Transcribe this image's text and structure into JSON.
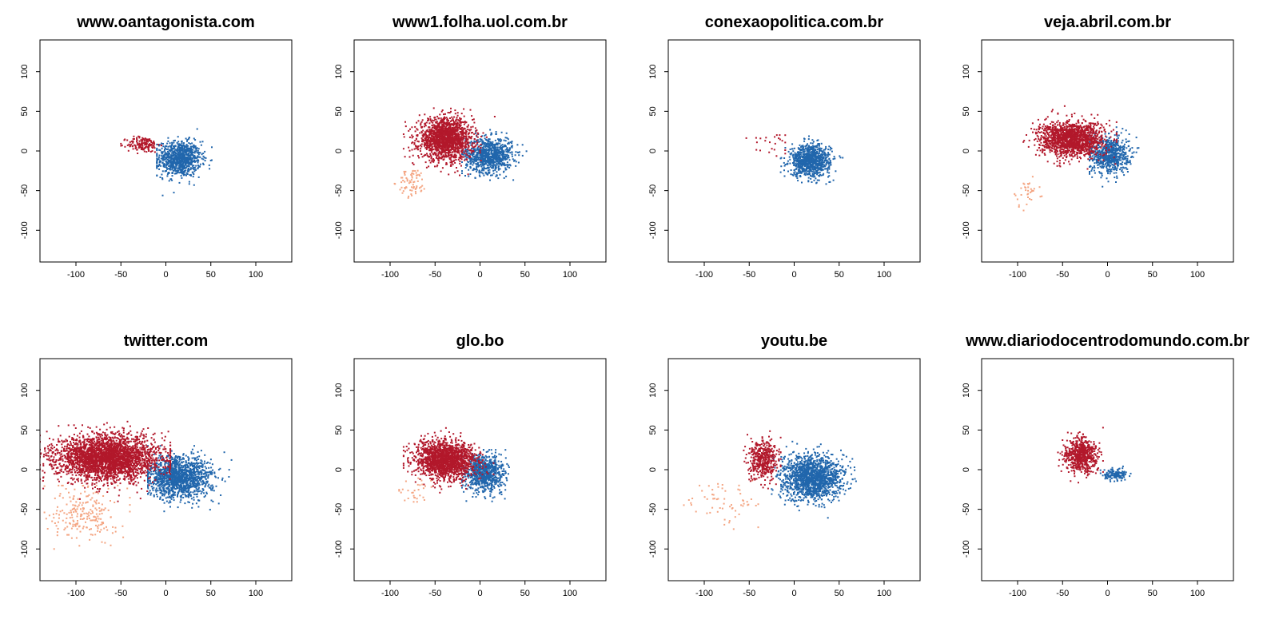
{
  "colors": {
    "red_cluster": "#b2182b",
    "blue_cluster": "#2166ac",
    "light_cluster": "#f4a582",
    "background": "#ffffff",
    "axis": "#000000"
  },
  "chart_data": [
    {
      "type": "scatter",
      "title": "www.oantagonista.com",
      "xlim": [
        -140,
        140
      ],
      "ylim": [
        -140,
        140
      ],
      "xticks": [
        "-100",
        "-50",
        "0",
        "50",
        "100"
      ],
      "yticks": [
        "-100",
        "-50",
        "0",
        "50",
        "100"
      ],
      "clusters": [
        {
          "color": "red_cluster",
          "center": [
            -25,
            8
          ],
          "spread": [
            9,
            5
          ],
          "count": 160,
          "range_x": [
            -50,
            -5
          ],
          "range_y": [
            -30,
            40
          ]
        },
        {
          "color": "blue_cluster",
          "center": [
            15,
            -10
          ],
          "spread": [
            12,
            11
          ],
          "count": 900,
          "range_x": [
            -10,
            65
          ],
          "range_y": [
            -60,
            28
          ]
        }
      ]
    },
    {
      "type": "scatter",
      "title": "www1.folha.uol.com.br",
      "xlim": [
        -140,
        140
      ],
      "ylim": [
        -140,
        140
      ],
      "xticks": [
        "-100",
        "-50",
        "0",
        "50",
        "100"
      ],
      "yticks": [
        "-100",
        "-50",
        "0",
        "50",
        "100"
      ],
      "clusters": [
        {
          "color": "red_cluster",
          "center": [
            -38,
            15
          ],
          "spread": [
            15,
            13
          ],
          "count": 1600,
          "range_x": [
            -85,
            20
          ],
          "range_y": [
            -40,
            80
          ]
        },
        {
          "color": "blue_cluster",
          "center": [
            10,
            -5
          ],
          "spread": [
            13,
            11
          ],
          "count": 900,
          "range_x": [
            -20,
            65
          ],
          "range_y": [
            -45,
            30
          ]
        },
        {
          "color": "light_cluster",
          "center": [
            -75,
            -40
          ],
          "spread": [
            8,
            9
          ],
          "count": 70,
          "range_x": [
            -95,
            -55
          ],
          "range_y": [
            -65,
            -20
          ]
        }
      ]
    },
    {
      "type": "scatter",
      "title": "conexaopolitica.com.br",
      "xlim": [
        -140,
        140
      ],
      "ylim": [
        -140,
        140
      ],
      "xticks": [
        "-100",
        "-50",
        "0",
        "50",
        "100"
      ],
      "yticks": [
        "-100",
        "-50",
        "0",
        "50",
        "100"
      ],
      "clusters": [
        {
          "color": "red_cluster",
          "center": [
            -30,
            10
          ],
          "spread": [
            14,
            10
          ],
          "count": 25,
          "range_x": [
            -80,
            -10
          ],
          "range_y": [
            -45,
            20
          ]
        },
        {
          "color": "blue_cluster",
          "center": [
            18,
            -12
          ],
          "spread": [
            11,
            10
          ],
          "count": 900,
          "range_x": [
            -15,
            75
          ],
          "range_y": [
            -60,
            35
          ]
        }
      ]
    },
    {
      "type": "scatter",
      "title": "veja.abril.com.br",
      "xlim": [
        -140,
        140
      ],
      "ylim": [
        -140,
        140
      ],
      "xticks": [
        "-100",
        "-50",
        "0",
        "50",
        "100"
      ],
      "yticks": [
        "-100",
        "-50",
        "0",
        "50",
        "100"
      ],
      "clusters": [
        {
          "color": "red_cluster",
          "center": [
            -40,
            15
          ],
          "spread": [
            18,
            11
          ],
          "count": 1500,
          "range_x": [
            -110,
            10
          ],
          "range_y": [
            -50,
            80
          ]
        },
        {
          "color": "blue_cluster",
          "center": [
            2,
            -5
          ],
          "spread": [
            11,
            12
          ],
          "count": 700,
          "range_x": [
            -20,
            65
          ],
          "range_y": [
            -45,
            30
          ]
        },
        {
          "color": "light_cluster",
          "center": [
            -90,
            -50
          ],
          "spread": [
            8,
            10
          ],
          "count": 35,
          "range_x": [
            -110,
            -70
          ],
          "range_y": [
            -75,
            -25
          ]
        }
      ]
    },
    {
      "type": "scatter",
      "title": "twitter.com",
      "xlim": [
        -140,
        140
      ],
      "ylim": [
        -140,
        140
      ],
      "xticks": [
        "-100",
        "-50",
        "0",
        "50",
        "100"
      ],
      "yticks": [
        "-100",
        "-50",
        "0",
        "50",
        "100"
      ],
      "clusters": [
        {
          "color": "red_cluster",
          "center": [
            -65,
            15
          ],
          "spread": [
            28,
            14
          ],
          "count": 3000,
          "range_x": [
            -140,
            5
          ],
          "range_y": [
            -40,
            90
          ]
        },
        {
          "color": "blue_cluster",
          "center": [
            15,
            -10
          ],
          "spread": [
            18,
            13
          ],
          "count": 1400,
          "range_x": [
            -20,
            85
          ],
          "range_y": [
            -70,
            30
          ]
        },
        {
          "color": "light_cluster",
          "center": [
            -90,
            -55
          ],
          "spread": [
            18,
            18
          ],
          "count": 220,
          "range_x": [
            -135,
            -40
          ],
          "range_y": [
            -100,
            -20
          ]
        }
      ]
    },
    {
      "type": "scatter",
      "title": "glo.bo",
      "xlim": [
        -140,
        140
      ],
      "ylim": [
        -140,
        140
      ],
      "xticks": [
        "-100",
        "-50",
        "0",
        "50",
        "100"
      ],
      "yticks": [
        "-100",
        "-50",
        "0",
        "50",
        "100"
      ],
      "clusters": [
        {
          "color": "red_cluster",
          "center": [
            -38,
            12
          ],
          "spread": [
            17,
            12
          ],
          "count": 1700,
          "range_x": [
            -85,
            15
          ],
          "range_y": [
            -45,
            80
          ]
        },
        {
          "color": "blue_cluster",
          "center": [
            5,
            -5
          ],
          "spread": [
            11,
            12
          ],
          "count": 800,
          "range_x": [
            -20,
            65
          ],
          "range_y": [
            -40,
            25
          ]
        },
        {
          "color": "light_cluster",
          "center": [
            -70,
            -25
          ],
          "spread": [
            10,
            8
          ],
          "count": 30,
          "range_x": [
            -90,
            -50
          ],
          "range_y": [
            -45,
            -10
          ]
        }
      ]
    },
    {
      "type": "scatter",
      "title": "youtu.be",
      "xlim": [
        -140,
        140
      ],
      "ylim": [
        -140,
        140
      ],
      "xticks": [
        "-100",
        "-50",
        "0",
        "50",
        "100"
      ],
      "yticks": [
        "-100",
        "-50",
        "0",
        "50",
        "100"
      ],
      "clusters": [
        {
          "color": "red_cluster",
          "center": [
            -35,
            12
          ],
          "spread": [
            8,
            12
          ],
          "count": 450,
          "range_x": [
            -125,
            -15
          ],
          "range_y": [
            -50,
            85
          ]
        },
        {
          "color": "blue_cluster",
          "center": [
            20,
            -10
          ],
          "spread": [
            17,
            14
          ],
          "count": 1500,
          "range_x": [
            -25,
            80
          ],
          "range_y": [
            -65,
            50
          ]
        },
        {
          "color": "light_cluster",
          "center": [
            -80,
            -40
          ],
          "spread": [
            18,
            12
          ],
          "count": 60,
          "range_x": [
            -125,
            -40
          ],
          "range_y": [
            -75,
            -10
          ]
        }
      ]
    },
    {
      "type": "scatter",
      "title": "www.diariodocentrodomundo.com.br",
      "xlim": [
        -140,
        140
      ],
      "ylim": [
        -140,
        140
      ],
      "xticks": [
        "-100",
        "-50",
        "0",
        "50",
        "100"
      ],
      "yticks": [
        "-100",
        "-50",
        "0",
        "50",
        "100"
      ],
      "clusters": [
        {
          "color": "red_cluster",
          "center": [
            -30,
            18
          ],
          "spread": [
            9,
            11
          ],
          "count": 650,
          "range_x": [
            -70,
            -5
          ],
          "range_y": [
            -40,
            75
          ]
        },
        {
          "color": "blue_cluster",
          "center": [
            8,
            -6
          ],
          "spread": [
            7,
            4
          ],
          "count": 140,
          "range_x": [
            -10,
            45
          ],
          "range_y": [
            -45,
            5
          ]
        }
      ]
    }
  ]
}
